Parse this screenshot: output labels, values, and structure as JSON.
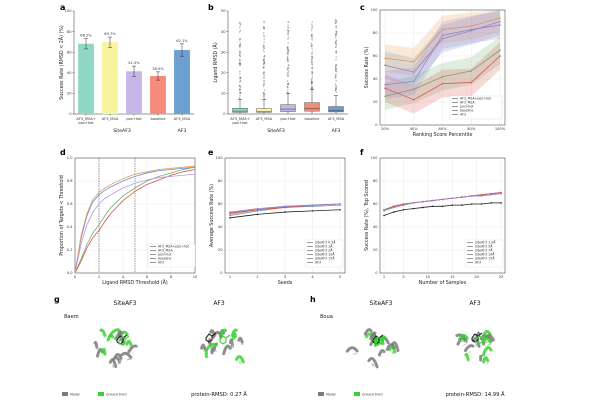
{
  "chart_data": [
    {
      "id": "a",
      "type": "bar",
      "ylabel": "Success Rate (RMSD < 2Å) (%)",
      "ylim": [
        0,
        100
      ],
      "yticks": [
        0,
        20,
        40,
        60,
        80,
        100
      ],
      "categories": [
        "AF3_MSA+ pos+hot",
        "AF3_MSA",
        "pos+hot",
        "baseline",
        "AF3_MSA"
      ],
      "tick_labels": [
        "AF3_MSA+\npos+hot",
        "AF3_MSA",
        "pos+hot",
        "baseline",
        "AF3_MSA"
      ],
      "values": [
        68.2,
        69.7,
        41.5,
        36.9,
        62.1
      ],
      "value_labels": [
        "68.2%",
        "69.7%",
        "41.5%",
        "36.9%",
        "62.1%"
      ],
      "errors": [
        5,
        5,
        5,
        4,
        6
      ],
      "colors": [
        "#8fd9c4",
        "#f7f59e",
        "#c7b6e8",
        "#f48b7d",
        "#6d9fd0"
      ],
      "group_labels": [
        "SiteAF3",
        "AF3"
      ]
    },
    {
      "id": "b",
      "type": "box",
      "ylabel": "Ligand RMSD (Å)",
      "ylim": [
        0,
        50
      ],
      "yticks": [
        0,
        10,
        20,
        30,
        40,
        50
      ],
      "tick_labels": [
        "AF3_MSA+\npos+hot",
        "AF3_MSA",
        "pos+hot",
        "baseline",
        "AF3_MSA"
      ],
      "colors": [
        "#8fd9c4",
        "#f7f59e",
        "#c7b6e8",
        "#f48b7d",
        "#6d9fd0"
      ],
      "boxes": [
        {
          "q1": 0.8,
          "median": 1.4,
          "q3": 2.8,
          "wl": 0.2,
          "wh": 7
        },
        {
          "q1": 0.8,
          "median": 1.3,
          "q3": 2.6,
          "wl": 0.2,
          "wh": 7
        },
        {
          "q1": 1.2,
          "median": 2.4,
          "q3": 4.5,
          "wl": 0.2,
          "wh": 10
        },
        {
          "q1": 1.4,
          "median": 2.8,
          "q3": 5.5,
          "wl": 0.2,
          "wh": 12
        },
        {
          "q1": 1.0,
          "median": 1.6,
          "q3": 3.6,
          "wl": 0.2,
          "wh": 9
        }
      ],
      "group_labels": [
        "SiteAF3",
        "AF3"
      ]
    },
    {
      "id": "c",
      "type": "line",
      "xlabel": "Ranking Score Percentile",
      "ylabel": "Success Rate (%)",
      "ylim": [
        0,
        100
      ],
      "yticks": [
        0,
        20,
        40,
        60,
        80,
        100
      ],
      "categories": [
        "20%",
        "40%",
        "60%",
        "80%",
        "100%"
      ],
      "series": [
        {
          "name": "AF3_MSA+pos+hot",
          "color": "#6b8fcf",
          "values": [
            52,
            46,
            75,
            82,
            90
          ]
        },
        {
          "name": "AF3_MSA",
          "color": "#e39b54",
          "values": [
            58,
            55,
            83,
            86,
            93
          ]
        },
        {
          "name": "pos+hot",
          "color": "#6fb26f",
          "values": [
            25,
            31,
            42,
            47,
            65
          ]
        },
        {
          "name": "baseline",
          "color": "#d9534f",
          "values": [
            32,
            22,
            36,
            37,
            60
          ]
        },
        {
          "name": "AF3",
          "color": "#9a7fcf",
          "values": [
            35,
            38,
            78,
            83,
            87
          ]
        }
      ]
    },
    {
      "id": "d",
      "type": "line",
      "xlabel": "Ligand RMSD Threshold (Å)",
      "ylabel": "Proportion of Targets < Threshold",
      "xlim": [
        0,
        10
      ],
      "ylim": [
        0,
        1
      ],
      "xticks": [
        0,
        2,
        4,
        6,
        8,
        10
      ],
      "yticks": [
        0.0,
        0.2,
        0.4,
        0.6,
        0.8,
        1.0
      ],
      "vlines": [
        2,
        5
      ],
      "x": [
        0,
        0.5,
        1,
        1.5,
        2,
        2.5,
        3,
        4,
        5,
        6,
        7,
        8,
        9,
        10
      ],
      "series": [
        {
          "name": "AF3_MSA+pos+hot",
          "color": "#6b8fcf",
          "values": [
            0,
            0.3,
            0.5,
            0.62,
            0.68,
            0.72,
            0.75,
            0.8,
            0.84,
            0.87,
            0.89,
            0.9,
            0.91,
            0.92
          ]
        },
        {
          "name": "AF3_MSA",
          "color": "#e39b54",
          "values": [
            0,
            0.32,
            0.52,
            0.64,
            0.7,
            0.74,
            0.77,
            0.82,
            0.86,
            0.88,
            0.9,
            0.91,
            0.92,
            0.93
          ]
        },
        {
          "name": "pos+hot",
          "color": "#6fb26f",
          "values": [
            0,
            0.12,
            0.25,
            0.35,
            0.42,
            0.5,
            0.57,
            0.67,
            0.74,
            0.8,
            0.84,
            0.87,
            0.9,
            0.92
          ]
        },
        {
          "name": "baseline",
          "color": "#d9534f",
          "values": [
            0,
            0.1,
            0.22,
            0.31,
            0.37,
            0.45,
            0.52,
            0.63,
            0.71,
            0.77,
            0.81,
            0.85,
            0.88,
            0.9
          ]
        },
        {
          "name": "AF3",
          "color": "#b598e3",
          "values": [
            0,
            0.25,
            0.42,
            0.53,
            0.6,
            0.65,
            0.68,
            0.74,
            0.78,
            0.81,
            0.83,
            0.84,
            0.85,
            0.86
          ]
        }
      ]
    },
    {
      "id": "e",
      "type": "line",
      "xlabel": "Seeds",
      "ylabel": "Average Success Rate (%)",
      "xlim": [
        1,
        5
      ],
      "ylim": [
        0,
        100
      ],
      "xticks": [
        1,
        2,
        3,
        4,
        5
      ],
      "yticks": [
        0,
        20,
        40,
        60,
        80,
        100
      ],
      "x": [
        1,
        2,
        3,
        4,
        5
      ],
      "series": [
        {
          "name": "SiteAF3 0.5Å",
          "color": "#6b8fcf",
          "values": [
            50,
            54,
            57,
            58,
            59
          ]
        },
        {
          "name": "SiteAF3 1Å",
          "color": "#e39b54",
          "values": [
            51,
            55,
            57,
            59,
            60
          ]
        },
        {
          "name": "SiteAF3 2Å",
          "color": "#6fb26f",
          "values": [
            52,
            55,
            58,
            59,
            60
          ]
        },
        {
          "name": "SiteAF3 10Å",
          "color": "#d9534f",
          "values": [
            52,
            55,
            57,
            59,
            60
          ]
        },
        {
          "name": "SiteAF3 15Å",
          "color": "#9a7fcf",
          "values": [
            53,
            56,
            58,
            59,
            60
          ]
        },
        {
          "name": "AF3",
          "color": "#222222",
          "values": [
            48,
            51,
            53,
            54,
            55
          ]
        }
      ]
    },
    {
      "id": "f",
      "type": "line",
      "xlabel": "Number of Samples",
      "ylabel": "Success Rate (%), Top Scored",
      "xlim": [
        1,
        25
      ],
      "ylim": [
        0,
        100
      ],
      "xticks": [
        1,
        5,
        10,
        15,
        20,
        25
      ],
      "yticks": [
        0,
        20,
        40,
        60,
        80,
        100
      ],
      "x": [
        1,
        3,
        5,
        7,
        9,
        11,
        13,
        15,
        17,
        19,
        21,
        23,
        25
      ],
      "series": [
        {
          "name": "SiteAF3 1.0Å",
          "color": "#6b8fcf",
          "values": [
            55,
            58,
            60,
            61,
            62,
            63,
            64,
            65,
            66,
            67,
            68,
            69,
            70
          ]
        },
        {
          "name": "SiteAF3 5Å",
          "color": "#e39b54",
          "values": [
            55,
            58,
            60,
            61,
            62,
            63,
            64,
            65,
            66,
            67,
            68,
            69,
            70
          ]
        },
        {
          "name": "SiteAF3 7Å",
          "color": "#6fb26f",
          "values": [
            54,
            57,
            59,
            61,
            62,
            63,
            64,
            65,
            66,
            67,
            68,
            69,
            69
          ]
        },
        {
          "name": "SiteAF3 10Å",
          "color": "#d9534f",
          "values": [
            55,
            58,
            60,
            61,
            62,
            63,
            64,
            65,
            66,
            67,
            68,
            69,
            70
          ]
        },
        {
          "name": "SiteAF3 15Å",
          "color": "#9a7fcf",
          "values": [
            55,
            57,
            59,
            61,
            62,
            63,
            64,
            65,
            66,
            67,
            67,
            68,
            69
          ]
        },
        {
          "name": "AF3",
          "color": "#222222",
          "values": [
            50,
            53,
            55,
            56,
            57,
            58,
            58,
            59,
            59,
            60,
            60,
            61,
            61
          ]
        }
      ]
    }
  ],
  "figure": {
    "top_group_left": "SiteAF3",
    "top_group_right": "AF3",
    "panel_g": {
      "letter": "g",
      "pdb": "8aem",
      "left_title": "SiteAF3",
      "right_title": "AF3",
      "legend_model": "Model",
      "legend_gt": "Ground truth",
      "caption": "protein-RMSD: 0.27 Å"
    },
    "panel_h": {
      "letter": "h",
      "pdb": "8oua",
      "left_title": "SiteAF3",
      "right_title": "AF3",
      "legend_model": "Model",
      "legend_gt": "Ground truth",
      "caption": "protein-RMSD: 14.99 Å"
    },
    "colors": {
      "model": "#7b7b7b",
      "ground_truth": "#35d62b"
    }
  }
}
